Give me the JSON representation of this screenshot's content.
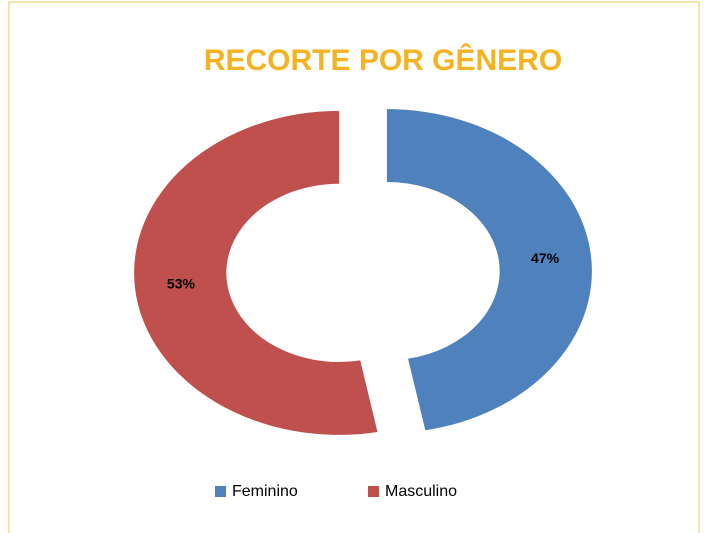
{
  "chart_data": {
    "type": "donut",
    "title": "RECORTE POR GÊNERO",
    "categories": [
      "Feminino",
      "Masculino"
    ],
    "values": [
      47,
      53
    ],
    "value_labels": [
      "47%",
      "53%"
    ],
    "colors": [
      "#4f81bd",
      "#c0504d"
    ],
    "legend": "bottom"
  }
}
